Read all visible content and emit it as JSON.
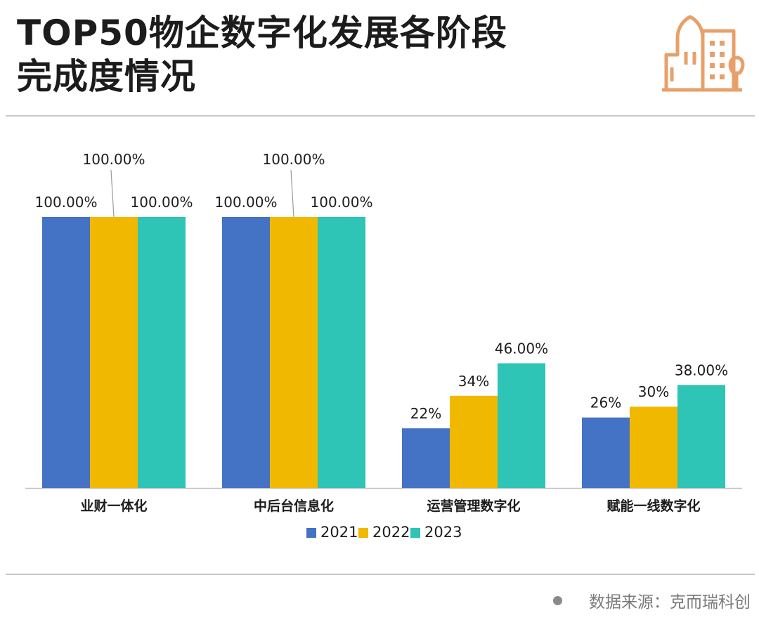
{
  "header": {
    "title_lines": [
      "TOP50物企数字化发展各阶段",
      "完成度情况"
    ]
  },
  "icon": "city-buildings-icon",
  "colors": {
    "series_2021": "#4472C4",
    "series_2022": "#F1B800",
    "series_2023": "#2EC4B6",
    "logo": "#E8A06A"
  },
  "chart_data": {
    "type": "bar",
    "categories": [
      "业财一体化",
      "中后台信息化",
      "运营管理数字化",
      "赋能一线数字化"
    ],
    "series": [
      {
        "name": "2021",
        "values": [
          100,
          100,
          22,
          26
        ],
        "labels": [
          "100.00%",
          "100.00%",
          "22%",
          "26%"
        ]
      },
      {
        "name": "2022",
        "values": [
          100,
          100,
          34,
          30
        ],
        "labels": [
          "100.00%",
          "100.00%",
          "34%",
          "30%"
        ]
      },
      {
        "name": "2023",
        "values": [
          100,
          100,
          46,
          38
        ],
        "labels": [
          "100.00%",
          "100.00%",
          "46.00%",
          "38.00%"
        ]
      }
    ],
    "ylim": [
      0,
      100
    ],
    "grid": false,
    "legend": "bottom-center"
  },
  "footer": {
    "source": "数据来源：克而瑞科创"
  }
}
